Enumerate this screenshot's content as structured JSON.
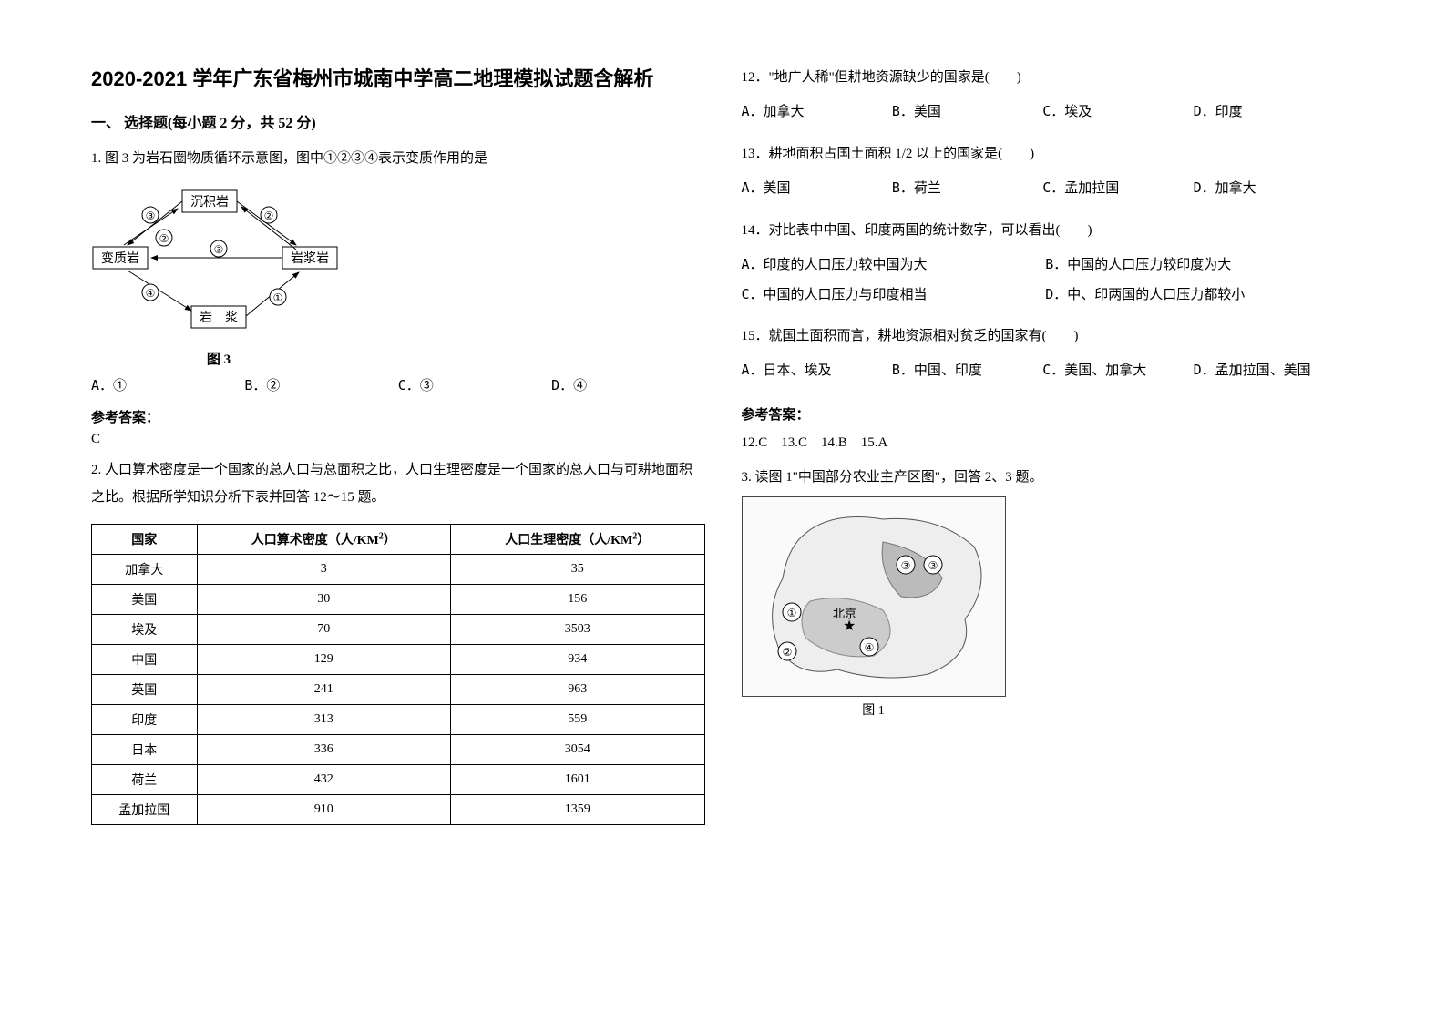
{
  "title": "2020-2021 学年广东省梅州市城南中学高二地理模拟试题含解析",
  "section1": "一、 选择题(每小题 2 分，共 52 分)",
  "q1": {
    "stem": "1. 图 3 为岩石圈物质循环示意图，图中①②③④表示变质作用的是",
    "fig_label": "图 3",
    "nodes": {
      "sed": "沉积岩",
      "meta": "变质岩",
      "ign": "岩浆岩",
      "magma": "岩　浆"
    },
    "circled": {
      "c1": "①",
      "c2": "②",
      "c3": "③",
      "c4": "④"
    },
    "opts": {
      "a": "A．①",
      "b": "B．②",
      "c": "C．③",
      "d": "D．④"
    },
    "answer_label": "参考答案：",
    "answer": "C"
  },
  "q2": {
    "intro": "2. 人口算术密度是一个国家的总人口与总面积之比，人口生理密度是一个国家的总人口与可耕地面积之比。根据所学知识分析下表并回答 12～15 题。",
    "table": {
      "headers": [
        "国家",
        "人口算术密度（人/KM",
        "人口生理密度（人/KM"
      ],
      "sup": "2",
      "rows": [
        [
          "加拿大",
          "3",
          "35"
        ],
        [
          "美国",
          "30",
          "156"
        ],
        [
          "埃及",
          "70",
          "3503"
        ],
        [
          "中国",
          "129",
          "934"
        ],
        [
          "英国",
          "241",
          "963"
        ],
        [
          "印度",
          "313",
          "559"
        ],
        [
          "日本",
          "336",
          "3054"
        ],
        [
          "荷兰",
          "432",
          "1601"
        ],
        [
          "孟加拉国",
          "910",
          "1359"
        ]
      ]
    }
  },
  "q12": {
    "stem": "12．\"地广人稀\"但耕地资源缺少的国家是(　　)",
    "opts": {
      "a": "A．加拿大",
      "b": "B．美国",
      "c": "C．埃及",
      "d": "D．印度"
    }
  },
  "q13": {
    "stem": "13．耕地面积占国土面积 1/2 以上的国家是(　　)",
    "opts": {
      "a": "A．美国",
      "b": "B．荷兰",
      "c": "C．孟加拉国",
      "d": "D．加拿大"
    }
  },
  "q14": {
    "stem": "14．对比表中中国、印度两国的统计数字，可以看出(　　)",
    "opts": {
      "a": "A．印度的人口压力较中国为大",
      "b": "B．中国的人口压力较印度为大",
      "c": "C．中国的人口压力与印度相当",
      "d": "D．中、印两国的人口压力都较小"
    }
  },
  "q15": {
    "stem": "15．就国土面积而言，耕地资源相对贫乏的国家有(　　)",
    "opts": {
      "a": "A．日本、埃及",
      "b": "B．中国、印度",
      "c": "C．美国、加拿大",
      "d": "D．孟加拉国、美国"
    }
  },
  "answers2": {
    "label": "参考答案：",
    "text": "12.C　13.C　14.B　15.A"
  },
  "q3": {
    "stem": "3. 读图 1\"中国部分农业主产区图\"，回答 2、3 题。",
    "map": {
      "beijing": "北京",
      "label": "图 1",
      "c1": "①",
      "c2": "②",
      "c3": "③",
      "c4": "④"
    }
  }
}
